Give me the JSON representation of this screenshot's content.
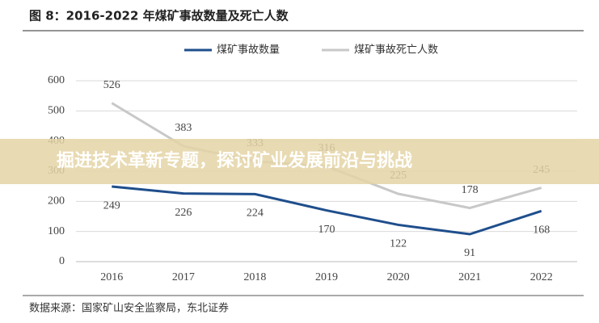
{
  "chart_data": {
    "type": "line",
    "title": "图 8：2016-2022 年煤矿事故数量及死亡人数",
    "source": "数据来源：国家矿山安全监察局，东北证券",
    "categories": [
      "2016",
      "2017",
      "2018",
      "2019",
      "2020",
      "2021",
      "2022"
    ],
    "series": [
      {
        "name": "煤矿事故数量",
        "color": "#1f4e8c",
        "values": [
          249,
          226,
          224,
          170,
          122,
          91,
          168
        ]
      },
      {
        "name": "煤矿事故死亡人数",
        "color": "#c8c8c8",
        "values": [
          526,
          383,
          333,
          316,
          225,
          178,
          245
        ]
      }
    ],
    "ylim": [
      0,
      600
    ],
    "yticks": [
      0,
      100,
      200,
      300,
      400,
      500,
      600
    ],
    "grid": true
  },
  "overlay_text": "掘进技术革新专题，探讨矿业发展前沿与挑战"
}
